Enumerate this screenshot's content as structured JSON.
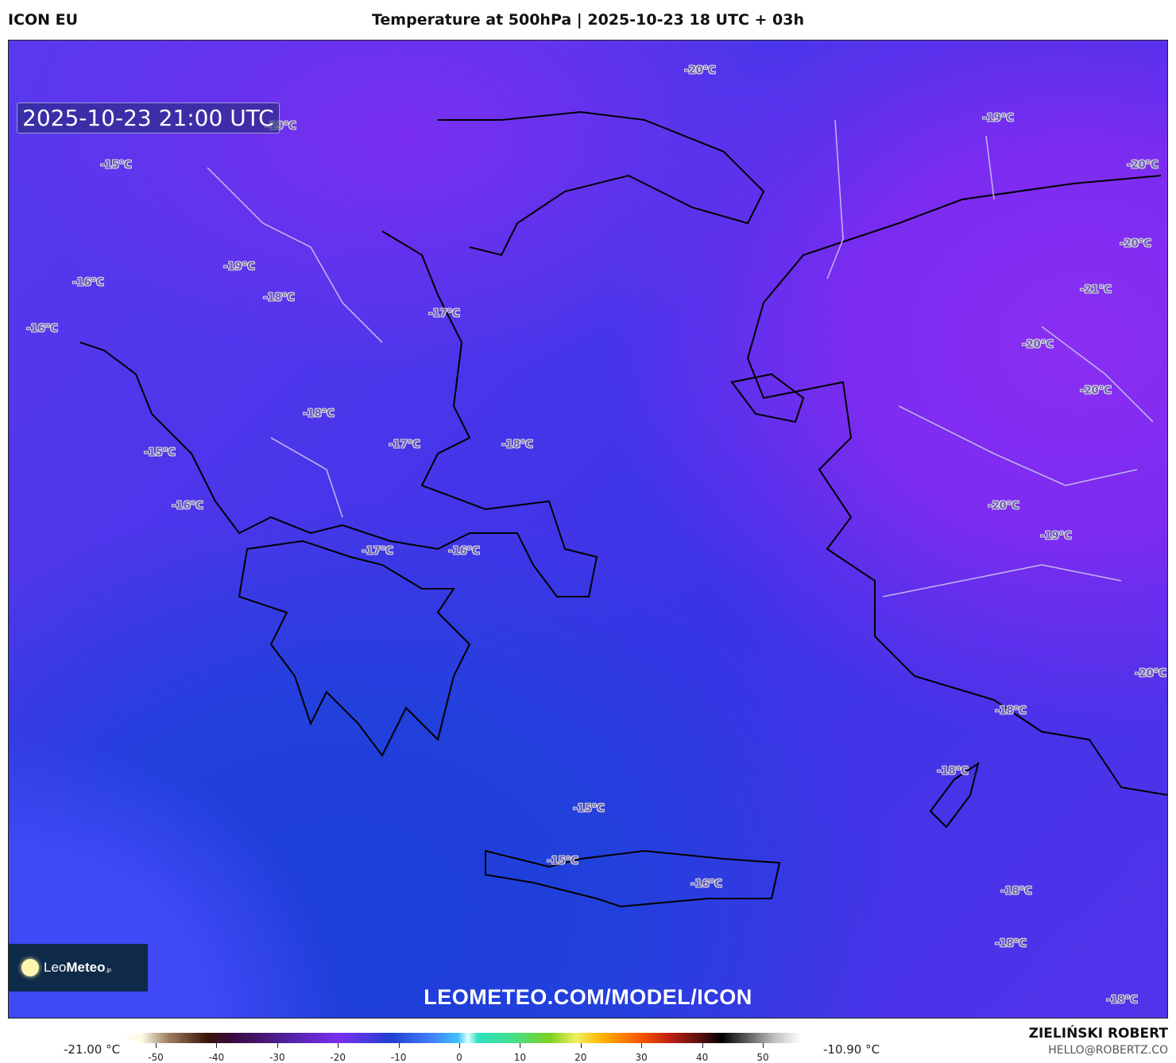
{
  "header": {
    "model": "ICON EU",
    "title": "Temperature at 500hPa | 2025-10-23 18 UTC + 03h"
  },
  "map": {
    "valid_time": "2025-10-23 21:00 UTC",
    "watermark": "LEOMETEO.COM/MODEL/ICON",
    "logo": {
      "text_light": "Leo",
      "text_bold": "Meteo",
      "suffix": ".jp"
    },
    "temperature_labels": [
      "-20°C",
      "-19°C",
      "-19°C",
      "-15°C",
      "-20°C",
      "-20°C",
      "-19°C",
      "-16°C",
      "-21°C",
      "-18°C",
      "-17°C",
      "-16°C",
      "-20°C",
      "-20°C",
      "-18°C",
      "-15°C",
      "-17°C",
      "-18°C",
      "-16°C",
      "-20°C",
      "-19°C",
      "-17°C",
      "-16°C",
      "-20°C",
      "-18°C",
      "-18°C",
      "-15°C",
      "-15°C",
      "-16°C",
      "-18°C",
      "-18°C",
      "-18°C"
    ]
  },
  "colorbar": {
    "min_label": "-21.00 °C",
    "max_label": "-10.90 °C",
    "ticks": [
      "-50",
      "-40",
      "-30",
      "-20",
      "-10",
      "0",
      "10",
      "20",
      "30",
      "40",
      "50"
    ]
  },
  "footer": {
    "author": "ZIELIŃSKI ROBERT",
    "email": "HELLO@ROBERTZ.CO"
  },
  "colors": {
    "cold_blue": "#2240dc",
    "purple": "#7b2cf0"
  }
}
